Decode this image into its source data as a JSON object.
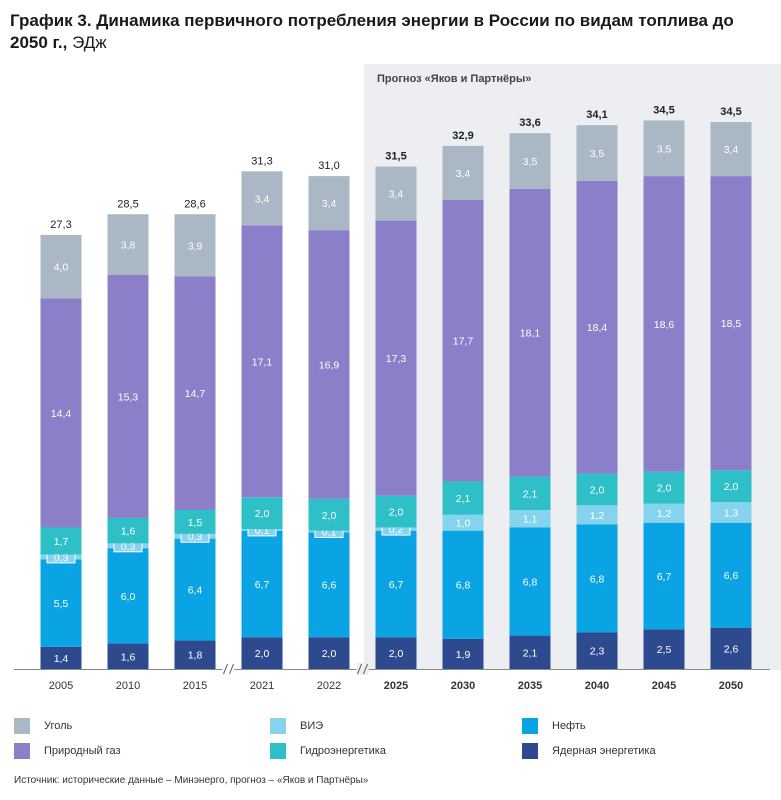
{
  "title": {
    "main": "График 3. Динамика первичного потребления энергии в России по видам топлива до 2050 г.,",
    "unit": "ЭДж"
  },
  "forecast_label": "Прогноз «Яков и Партнёры»",
  "source": "Источник: исторические данные – Минэнерго, прогноз – «Яков и Партнёры»",
  "colors": {
    "nuclear": "#2e4a8e",
    "oil": "#0aa3e3",
    "hydro": "#2fbfc6",
    "renewables": "#86d3ee",
    "gas": "#8b7fc9",
    "coal": "#a9b8c4",
    "forecast_bg": "#eceef1"
  },
  "legend": [
    {
      "key": "coal",
      "label": "Уголь"
    },
    {
      "key": "renewables",
      "label": "ВИЭ"
    },
    {
      "key": "oil",
      "label": "Нефть"
    },
    {
      "key": "gas",
      "label": "Природный газ"
    },
    {
      "key": "hydro",
      "label": "Гидроэнергетика"
    },
    {
      "key": "nuclear",
      "label": "Ядерная энергетика"
    }
  ],
  "chart_data": {
    "type": "bar",
    "stacked": true,
    "categories": [
      "2005",
      "2010",
      "2015",
      "2021",
      "2022",
      "2025",
      "2030",
      "2035",
      "2040",
      "2045",
      "2050"
    ],
    "forecast_from": "2025",
    "axis_breaks_after": [
      "2015",
      "2022"
    ],
    "series": [
      {
        "key": "nuclear",
        "name": "Ядерная энергетика",
        "values": [
          1.4,
          1.6,
          1.8,
          2.0,
          2.0,
          2.0,
          1.9,
          2.1,
          2.3,
          2.5,
          2.6
        ],
        "labels": [
          "1,4",
          "1,6",
          "1,8",
          "2,0",
          "2,0",
          "2,0",
          "1,9",
          "2,1",
          "2,3",
          "2,5",
          "2,6"
        ]
      },
      {
        "key": "oil",
        "name": "Нефть",
        "values": [
          5.5,
          6.0,
          6.4,
          6.7,
          6.6,
          6.7,
          6.8,
          6.8,
          6.8,
          6.7,
          6.6
        ],
        "labels": [
          "5,5",
          "6,0",
          "6,4",
          "6,7",
          "6,6",
          "6,7",
          "6,8",
          "6,8",
          "6,8",
          "6,7",
          "6,6"
        ]
      },
      {
        "key": "renewables",
        "name": "ВИЭ",
        "values": [
          0.3,
          0.3,
          0.3,
          0.1,
          0.1,
          0.2,
          1.0,
          1.1,
          1.2,
          1.2,
          1.3
        ],
        "labels": [
          "0,3",
          "0,3",
          "0,3",
          "0,1",
          "0,1",
          "0,2",
          "1,0",
          "1,1",
          "1,2",
          "1,2",
          "1,3"
        ]
      },
      {
        "key": "hydro",
        "name": "Гидроэнергетика",
        "values": [
          1.7,
          1.6,
          1.5,
          2.0,
          2.0,
          2.0,
          2.1,
          2.1,
          2.0,
          2.0,
          2.0
        ],
        "labels": [
          "1,7",
          "1,6",
          "1,5",
          "2,0",
          "2,0",
          "2,0",
          "2,1",
          "2,1",
          "2,0",
          "2,0",
          "2,0"
        ]
      },
      {
        "key": "gas",
        "name": "Природный газ",
        "values": [
          14.4,
          15.3,
          14.7,
          17.1,
          16.9,
          17.3,
          17.7,
          18.1,
          18.4,
          18.6,
          18.5
        ],
        "labels": [
          "14,4",
          "15,3",
          "14,7",
          "17,1",
          "16,9",
          "17,3",
          "17,7",
          "18,1",
          "18,4",
          "18,6",
          "18,5"
        ]
      },
      {
        "key": "coal",
        "name": "Уголь",
        "values": [
          4.0,
          3.8,
          3.9,
          3.4,
          3.4,
          3.4,
          3.4,
          3.5,
          3.5,
          3.5,
          3.4
        ],
        "labels": [
          "4,0",
          "3,8",
          "3,9",
          "3,4",
          "3,4",
          "3,4",
          "3,4",
          "3,5",
          "3,5",
          "3,5",
          "3,4"
        ]
      }
    ],
    "totals": [
      27.3,
      28.5,
      28.6,
      31.3,
      31.0,
      31.5,
      32.9,
      33.6,
      34.1,
      34.5,
      34.5
    ],
    "total_labels": [
      "27,3",
      "28,5",
      "28,6",
      "31,3",
      "31,0",
      "31,5",
      "32,9",
      "33,6",
      "34,1",
      "34,5",
      "34,5"
    ]
  }
}
